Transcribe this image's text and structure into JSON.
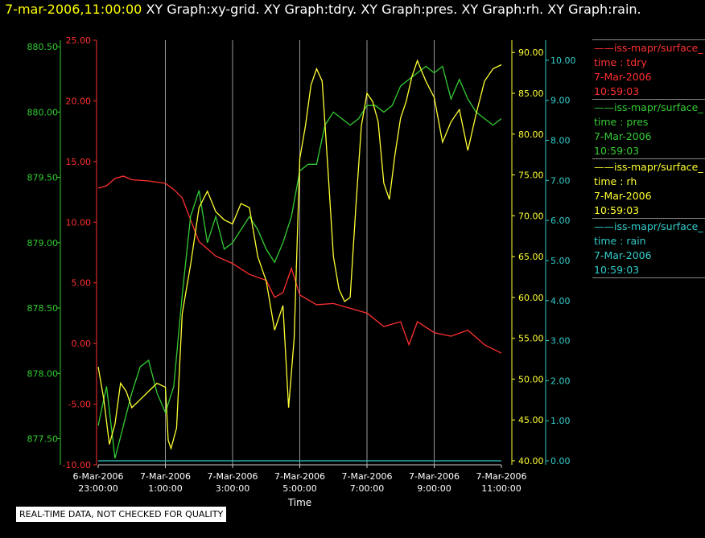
{
  "header": {
    "timestamp": "7-mar-2006,11:00:00",
    "tabs": [
      "XY Graph:xy-grid.",
      "XY Graph:tdry.",
      "XY Graph:pres.",
      "XY Graph:rh.",
      "XY Graph:rain."
    ]
  },
  "legend": [
    {
      "name": "iss-mapr/surface_",
      "var": "time : tdry",
      "date": "7-Mar-2006",
      "time": "10:59:03",
      "color": "#ff3030"
    },
    {
      "name": "iss-mapr/surface_",
      "var": "time : pres",
      "date": "7-Mar-2006",
      "time": "10:59:03",
      "color": "#33cc33"
    },
    {
      "name": "iss-mapr/surface_",
      "var": "time : rh",
      "date": "7-Mar-2006",
      "time": "10:59:03",
      "color": "#ffff33"
    },
    {
      "name": "iss-mapr/surface_",
      "var": "time : rain",
      "date": "7-Mar-2006",
      "time": "10:59:03",
      "color": "#33cccc"
    }
  ],
  "footer": {
    "note": "REAL-TIME DATA, NOT CHECKED FOR QUALITY"
  },
  "chart_data": {
    "type": "line",
    "xlabel": "Time",
    "x_ticks": [
      {
        "date": "6-Mar-2006",
        "time": "23:00:00"
      },
      {
        "date": "7-Mar-2006",
        "time": "1:00:00"
      },
      {
        "date": "7-Mar-2006",
        "time": "3:00:00"
      },
      {
        "date": "7-Mar-2006",
        "time": "5:00:00"
      },
      {
        "date": "7-Mar-2006",
        "time": "7:00:00"
      },
      {
        "date": "7-Mar-2006",
        "time": "9:00:00"
      },
      {
        "date": "7-Mar-2006",
        "time": "11:00:00"
      }
    ],
    "xlim": [
      "2006-03-06 23:00",
      "2006-03-07 11:00"
    ],
    "grid": "vertical",
    "axes": {
      "pres": {
        "color": "#33cc33",
        "ylim": [
          877.3,
          880.55
        ],
        "ticks": [
          "877.50",
          "878.00",
          "878.50",
          "879.00",
          "879.50",
          "880.00",
          "880.50"
        ]
      },
      "tdry": {
        "color": "#ff3030",
        "ylim": [
          -10,
          25
        ],
        "ticks": [
          "-10.00",
          "-5.00",
          "0.00",
          "5.00",
          "10.00",
          "15.00",
          "20.00",
          "25.00"
        ]
      },
      "rh": {
        "color": "#ffff33",
        "ylim": [
          39.5,
          91.5
        ],
        "ticks": [
          "40.00",
          "45.00",
          "50.00",
          "55.00",
          "60.00",
          "65.00",
          "70.00",
          "75.00",
          "80.00",
          "85.00",
          "90.00"
        ]
      },
      "rain": {
        "color": "#33cccc",
        "ylim": [
          -0.1,
          10.5
        ],
        "ticks": [
          "0.00",
          "1.00",
          "2.00",
          "3.00",
          "4.00",
          "5.00",
          "6.00",
          "7.00",
          "8.00",
          "9.00",
          "10.00"
        ]
      }
    },
    "series": [
      {
        "name": "tdry",
        "axis": "tdry",
        "color": "#ff3030",
        "x": [
          "2006-03-06 23:00",
          "2006-03-06 23:15",
          "2006-03-06 23:30",
          "2006-03-06 23:45",
          "2006-03-07 00:00",
          "2006-03-07 00:30",
          "2006-03-07 01:00",
          "2006-03-07 01:15",
          "2006-03-07 01:30",
          "2006-03-07 01:45",
          "2006-03-07 02:00",
          "2006-03-07 02:30",
          "2006-03-07 03:00",
          "2006-03-07 03:30",
          "2006-03-07 04:00",
          "2006-03-07 04:15",
          "2006-03-07 04:30",
          "2006-03-07 04:45",
          "2006-03-07 05:00",
          "2006-03-07 05:30",
          "2006-03-07 06:00",
          "2006-03-07 06:30",
          "2006-03-07 07:00",
          "2006-03-07 07:30",
          "2006-03-07 08:00",
          "2006-03-07 08:15",
          "2006-03-07 08:30",
          "2006-03-07 09:00",
          "2006-03-07 09:30",
          "2006-03-07 10:00",
          "2006-03-07 10:30",
          "2006-03-07 11:00"
        ],
        "y": [
          12.8,
          13.0,
          13.6,
          13.8,
          13.5,
          13.4,
          13.2,
          12.7,
          12.0,
          10.2,
          8.4,
          7.2,
          6.6,
          5.7,
          5.2,
          3.8,
          4.2,
          6.2,
          4.0,
          3.2,
          3.3,
          2.9,
          2.5,
          1.4,
          1.8,
          -0.1,
          1.8,
          0.9,
          0.6,
          1.1,
          -0.1,
          -0.8
        ]
      },
      {
        "name": "pres",
        "axis": "pres",
        "color": "#33cc33",
        "x": [
          "2006-03-06 23:00",
          "2006-03-06 23:15",
          "2006-03-06 23:30",
          "2006-03-06 23:45",
          "2006-03-07 00:00",
          "2006-03-07 00:15",
          "2006-03-07 00:30",
          "2006-03-07 00:45",
          "2006-03-07 01:00",
          "2006-03-07 01:15",
          "2006-03-07 01:30",
          "2006-03-07 01:45",
          "2006-03-07 02:00",
          "2006-03-07 02:15",
          "2006-03-07 02:30",
          "2006-03-07 02:45",
          "2006-03-07 03:00",
          "2006-03-07 03:15",
          "2006-03-07 03:30",
          "2006-03-07 03:45",
          "2006-03-07 04:00",
          "2006-03-07 04:15",
          "2006-03-07 04:30",
          "2006-03-07 04:45",
          "2006-03-07 05:00",
          "2006-03-07 05:15",
          "2006-03-07 05:30",
          "2006-03-07 05:45",
          "2006-03-07 06:00",
          "2006-03-07 06:15",
          "2006-03-07 06:30",
          "2006-03-07 06:45",
          "2006-03-07 07:00",
          "2006-03-07 07:15",
          "2006-03-07 07:30",
          "2006-03-07 07:45",
          "2006-03-07 08:00",
          "2006-03-07 08:15",
          "2006-03-07 08:30",
          "2006-03-07 08:45",
          "2006-03-07 09:00",
          "2006-03-07 09:15",
          "2006-03-07 09:30",
          "2006-03-07 09:45",
          "2006-03-07 10:00",
          "2006-03-07 10:15",
          "2006-03-07 10:30",
          "2006-03-07 10:45",
          "2006-03-07 11:00"
        ],
        "y": [
          877.6,
          877.9,
          877.35,
          877.6,
          877.85,
          878.05,
          878.1,
          877.85,
          877.7,
          877.9,
          878.6,
          879.2,
          879.4,
          879.0,
          879.2,
          878.95,
          879.0,
          879.1,
          879.2,
          879.1,
          878.95,
          878.85,
          879.0,
          879.2,
          879.55,
          879.6,
          879.6,
          879.9,
          880.0,
          879.95,
          879.9,
          879.95,
          880.05,
          880.05,
          880.0,
          880.05,
          880.2,
          880.25,
          880.3,
          880.35,
          880.3,
          880.35,
          880.1,
          880.25,
          880.1,
          880.0,
          879.95,
          879.9,
          879.95
        ]
      },
      {
        "name": "rh",
        "axis": "rh",
        "color": "#ffff33",
        "x": [
          "2006-03-06 23:00",
          "2006-03-06 23:10",
          "2006-03-06 23:20",
          "2006-03-06 23:30",
          "2006-03-06 23:40",
          "2006-03-06 23:50",
          "2006-03-07 00:00",
          "2006-03-07 00:15",
          "2006-03-07 00:30",
          "2006-03-07 00:45",
          "2006-03-07 01:00",
          "2006-03-07 01:05",
          "2006-03-07 01:10",
          "2006-03-07 01:20",
          "2006-03-07 01:30",
          "2006-03-07 01:45",
          "2006-03-07 02:00",
          "2006-03-07 02:15",
          "2006-03-07 02:30",
          "2006-03-07 02:45",
          "2006-03-07 03:00",
          "2006-03-07 03:15",
          "2006-03-07 03:30",
          "2006-03-07 03:45",
          "2006-03-07 04:00",
          "2006-03-07 04:15",
          "2006-03-07 04:30",
          "2006-03-07 04:40",
          "2006-03-07 04:50",
          "2006-03-07 05:00",
          "2006-03-07 05:10",
          "2006-03-07 05:20",
          "2006-03-07 05:30",
          "2006-03-07 05:40",
          "2006-03-07 05:50",
          "2006-03-07 06:00",
          "2006-03-07 06:10",
          "2006-03-07 06:20",
          "2006-03-07 06:30",
          "2006-03-07 06:40",
          "2006-03-07 06:50",
          "2006-03-07 07:00",
          "2006-03-07 07:10",
          "2006-03-07 07:20",
          "2006-03-07 07:30",
          "2006-03-07 07:40",
          "2006-03-07 07:50",
          "2006-03-07 08:00",
          "2006-03-07 08:10",
          "2006-03-07 08:20",
          "2006-03-07 08:30",
          "2006-03-07 08:45",
          "2006-03-07 09:00",
          "2006-03-07 09:15",
          "2006-03-07 09:30",
          "2006-03-07 09:45",
          "2006-03-07 10:00",
          "2006-03-07 10:15",
          "2006-03-07 10:30",
          "2006-03-07 10:45",
          "2006-03-07 11:00"
        ],
        "y": [
          51.5,
          47.5,
          42.0,
          44.5,
          49.5,
          48.5,
          46.5,
          47.5,
          48.5,
          49.5,
          49.0,
          42.5,
          41.5,
          44.0,
          58.0,
          64.0,
          71.0,
          73.0,
          70.5,
          69.5,
          69.0,
          71.5,
          71.0,
          65.0,
          62.0,
          56.0,
          59.0,
          46.5,
          55.0,
          77.0,
          81.0,
          86.0,
          88.0,
          86.5,
          76.0,
          65.0,
          61.0,
          59.5,
          60.0,
          71.0,
          81.0,
          85.0,
          84.0,
          81.5,
          74.0,
          72.0,
          77.5,
          82.0,
          84.0,
          87.0,
          89.0,
          86.5,
          84.5,
          79.0,
          81.5,
          83.0,
          78.0,
          82.5,
          86.5,
          88.0,
          88.5
        ]
      },
      {
        "name": "rain",
        "axis": "rain",
        "color": "#33cccc",
        "x": [
          "2006-03-06 23:00",
          "2006-03-07 11:00"
        ],
        "y": [
          0.0,
          0.0
        ]
      }
    ]
  }
}
